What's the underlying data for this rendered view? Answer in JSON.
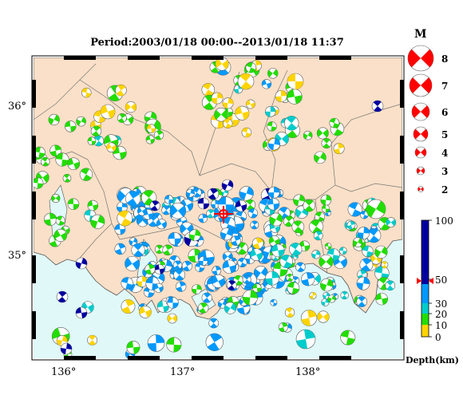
{
  "map": {
    "title": "Period:2003/01/18 00:00--2013/01/18 11:37",
    "lat_labels": [
      "36°",
      "35°"
    ],
    "lon_labels": [
      "136°",
      "137°",
      "138°"
    ],
    "colors": {
      "sea": "#e0f8f8",
      "land": "#fae0c8",
      "frame": "#000000",
      "quadrant_white": "#ffffff"
    }
  },
  "magnitude_legend": {
    "title": "M",
    "entries": [
      {
        "label": "8",
        "value": 8
      },
      {
        "label": "7",
        "value": 7
      },
      {
        "label": "6",
        "value": 6
      },
      {
        "label": "5",
        "value": 5
      },
      {
        "label": "4",
        "value": 4
      },
      {
        "label": "3",
        "value": 3
      },
      {
        "label": "2",
        "value": 2
      }
    ],
    "color": "#ff0000"
  },
  "depth_scale": {
    "labels": [
      "100",
      "50",
      "30",
      "20",
      "10",
      "0"
    ],
    "unit_label": "Depth(km)",
    "bands": [
      {
        "from": 0,
        "to": 10,
        "color": "#ffd400"
      },
      {
        "from": 10,
        "to": 20,
        "color": "#22dd00"
      },
      {
        "from": 20,
        "to": 30,
        "color": "#00cccc"
      },
      {
        "from": 30,
        "to": 50,
        "color": "#0099ff"
      },
      {
        "from": 50,
        "to": 100,
        "color": "#0000a0"
      }
    ],
    "marker_depth": 50,
    "marker_color": "#ff0000"
  }
}
